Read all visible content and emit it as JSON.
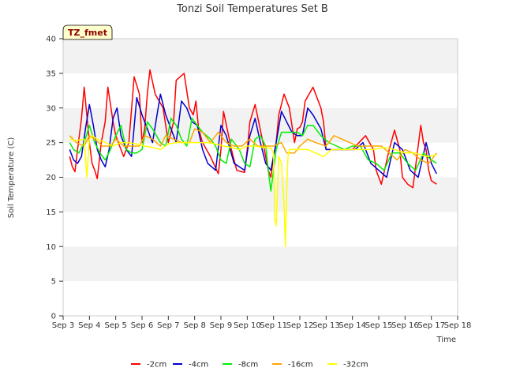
{
  "chart_data": {
    "type": "line",
    "title": "Tonzi Soil Temperatures Set B",
    "xlabel": "Time",
    "ylabel": "Soil Temperature (C)",
    "ylim": [
      0,
      40
    ],
    "xlim": [
      3,
      18
    ],
    "yticks": [
      0,
      5,
      10,
      15,
      20,
      25,
      30,
      35,
      40
    ],
    "xticks": [
      3,
      4,
      5,
      6,
      7,
      8,
      9,
      10,
      11,
      12,
      13,
      14,
      15,
      16,
      17,
      18
    ],
    "xtick_labels": [
      "Sep 3",
      "Sep 4",
      "Sep 5",
      "Sep 6",
      "Sep 7",
      "Sep 8",
      "Sep 9",
      "Sep 10",
      "Sep 11",
      "Sep 12",
      "Sep 13",
      "Sep 14",
      "Sep 15",
      "Sep 16",
      "Sep 17",
      "Sep 18"
    ],
    "grid": "horizontal bands",
    "legend_position": "bottom-center",
    "annotation": "TZ_fmet",
    "series": [
      {
        "name": "-2cm",
        "color": "#ff0000",
        "x": [
          3.25,
          3.35,
          3.45,
          3.55,
          3.7,
          3.8,
          3.9,
          4.0,
          4.1,
          4.2,
          4.3,
          4.45,
          4.6,
          4.7,
          4.9,
          5.0,
          5.1,
          5.2,
          5.3,
          5.5,
          5.7,
          5.9,
          6.0,
          6.1,
          6.2,
          6.3,
          6.5,
          6.8,
          7.0,
          7.2,
          7.3,
          7.6,
          7.8,
          7.95,
          8.05,
          8.15,
          8.3,
          8.6,
          8.9,
          9.0,
          9.1,
          9.4,
          9.6,
          9.8,
          9.9,
          10.0,
          10.1,
          10.3,
          10.6,
          10.8,
          10.9,
          11.0,
          11.1,
          11.2,
          11.4,
          11.6,
          11.8,
          11.9,
          12.0,
          12.1,
          12.2,
          12.5,
          12.8,
          12.9,
          13.0,
          13.1,
          13.5,
          14.0,
          14.5,
          14.8,
          14.9,
          15.0,
          15.1,
          15.4,
          15.6,
          15.8,
          15.9,
          16.0,
          16.1,
          16.3,
          16.6,
          16.7,
          16.8,
          16.9,
          17.0,
          17.2
        ],
        "values": [
          23,
          21.5,
          20.8,
          24,
          28.5,
          33,
          29,
          25,
          22,
          21,
          19.8,
          25,
          28,
          33,
          28,
          26,
          25,
          24,
          23,
          25,
          34.5,
          32,
          25,
          27,
          32,
          35.5,
          32,
          30,
          25,
          28,
          34,
          35,
          30,
          29,
          31,
          27,
          25,
          23,
          20.5,
          24,
          29.5,
          24,
          21,
          20.8,
          20.7,
          24,
          28,
          30.5,
          25,
          21,
          20,
          23,
          25,
          29,
          32,
          30,
          25,
          27,
          27.2,
          28,
          31,
          33,
          30,
          28,
          24,
          24,
          24,
          24,
          26,
          24,
          21,
          20,
          19,
          24,
          26.8,
          24,
          20,
          19.5,
          19,
          18.5,
          27.5,
          25,
          24,
          21,
          19.5,
          19
        ]
      },
      {
        "name": "-4cm",
        "color": "#0000cc",
        "x": [
          3.25,
          3.4,
          3.55,
          3.7,
          3.85,
          4.0,
          4.15,
          4.3,
          4.45,
          4.6,
          4.75,
          4.9,
          5.05,
          5.2,
          5.4,
          5.6,
          5.8,
          6.0,
          6.2,
          6.4,
          6.7,
          6.9,
          7.1,
          7.3,
          7.5,
          7.7,
          7.9,
          8.1,
          8.3,
          8.5,
          8.8,
          9.0,
          9.2,
          9.5,
          9.7,
          9.9,
          10.1,
          10.3,
          10.5,
          10.7,
          10.9,
          11.1,
          11.3,
          11.5,
          11.7,
          11.9,
          12.1,
          12.3,
          12.5,
          12.8,
          13.0,
          13.2,
          13.5,
          13.8,
          14.1,
          14.4,
          14.7,
          15.0,
          15.3,
          15.6,
          15.9,
          16.2,
          16.5,
          16.8,
          17.0,
          17.2
        ],
        "values": [
          24,
          22.5,
          22,
          23,
          27,
          30.5,
          27.5,
          24,
          22.5,
          21.5,
          24,
          28.5,
          30,
          26,
          24,
          23,
          31.5,
          29,
          27,
          25,
          32,
          29,
          27,
          25,
          31,
          30,
          28,
          27.5,
          24,
          22,
          21,
          27.5,
          26,
          22,
          21.5,
          21,
          26,
          28.5,
          25,
          22,
          21,
          25,
          29.5,
          28,
          26.5,
          26,
          26,
          30,
          29,
          27,
          24,
          24,
          24,
          24,
          24,
          25,
          22,
          21,
          20,
          25,
          24,
          21,
          20,
          25,
          22,
          20.5
        ]
      },
      {
        "name": "-8cm",
        "color": "#00ee00",
        "x": [
          3.25,
          3.4,
          3.6,
          3.8,
          4.0,
          4.2,
          4.4,
          4.6,
          4.8,
          5.0,
          5.2,
          5.4,
          5.6,
          5.8,
          6.0,
          6.2,
          6.4,
          6.7,
          6.9,
          7.1,
          7.3,
          7.5,
          7.7,
          7.9,
          8.1,
          8.3,
          8.6,
          8.8,
          9.0,
          9.2,
          9.4,
          9.7,
          9.9,
          10.1,
          10.3,
          10.5,
          10.7,
          10.8,
          10.9,
          11.0,
          11.1,
          11.3,
          11.6,
          11.9,
          12.1,
          12.3,
          12.5,
          12.8,
          13.1,
          13.4,
          13.7,
          14.0,
          14.3,
          14.6,
          14.9,
          15.2,
          15.5,
          15.8,
          16.1,
          16.4,
          16.7,
          17.0,
          17.2
        ],
        "values": [
          25,
          24,
          23.5,
          25,
          27.5,
          25,
          23.5,
          22.5,
          24,
          26,
          27.5,
          24,
          23.5,
          23.5,
          24,
          28,
          27,
          25,
          24.5,
          28.5,
          27.5,
          25.5,
          24.5,
          28.5,
          27.5,
          26.5,
          25.5,
          24.5,
          22.5,
          22,
          25.5,
          24,
          22,
          21.5,
          25.5,
          26,
          24.5,
          21,
          18,
          21,
          24,
          26.5,
          26.5,
          26.5,
          26,
          27.5,
          27.5,
          26,
          25,
          24.5,
          24,
          24.5,
          24.5,
          22.5,
          22,
          21,
          23.5,
          23.5,
          22,
          21,
          23.5,
          22.5,
          22
        ]
      },
      {
        "name": "-16cm",
        "color": "#ffa500",
        "x": [
          3.25,
          3.5,
          3.8,
          4.0,
          4.2,
          4.5,
          4.8,
          5.0,
          5.3,
          5.6,
          5.9,
          6.1,
          6.4,
          6.7,
          6.9,
          7.2,
          7.5,
          7.8,
          8.0,
          8.3,
          8.6,
          8.9,
          9.2,
          9.5,
          9.8,
          10.1,
          10.4,
          10.7,
          11.0,
          11.3,
          11.5,
          11.8,
          12.0,
          12.3,
          12.6,
          13.0,
          13.3,
          13.6,
          13.9,
          14.2,
          14.5,
          14.8,
          15.1,
          15.4,
          15.7,
          16.0,
          16.3,
          16.6,
          16.9,
          17.2
        ],
        "values": [
          26,
          25,
          24.5,
          26,
          25.5,
          24.5,
          24.5,
          25.5,
          24.5,
          24.5,
          24.5,
          26,
          25.5,
          24.5,
          26,
          25.5,
          25,
          25,
          27,
          26.5,
          25,
          26.5,
          25,
          24.5,
          24.5,
          25.5,
          24.5,
          24.5,
          24.5,
          25,
          23.5,
          23.5,
          24.5,
          25.5,
          25,
          24.5,
          26,
          25.5,
          25,
          24.5,
          24.5,
          24.5,
          24.5,
          23.5,
          22.5,
          24,
          23.5,
          22.5,
          22,
          23.5
        ]
      },
      {
        "name": "-32cm",
        "color": "#ffff00",
        "x": [
          3.25,
          3.5,
          3.8,
          3.9,
          4.0,
          4.1,
          4.3,
          4.6,
          4.9,
          5.2,
          5.5,
          5.8,
          6.1,
          6.4,
          6.7,
          7.0,
          7.3,
          7.6,
          7.9,
          8.2,
          8.5,
          8.8,
          9.1,
          9.4,
          9.7,
          10.0,
          10.3,
          10.6,
          10.9,
          11.0,
          11.05,
          11.1,
          11.2,
          11.3,
          11.4,
          11.45,
          11.5,
          11.55,
          11.6,
          11.8,
          12.0,
          12.3,
          12.6,
          12.9,
          13.2,
          13.6,
          14.0,
          14.4,
          14.8,
          15.2,
          15.6,
          16.0,
          16.4,
          16.8,
          17.2
        ],
        "values": [
          25.5,
          25.3,
          25.5,
          20,
          25.5,
          26,
          25.5,
          25,
          24.5,
          25,
          25,
          24.8,
          24.5,
          24.3,
          24,
          24.8,
          25,
          25,
          25,
          25,
          25,
          24.8,
          24.5,
          24.3,
          24,
          24.5,
          24.5,
          24.3,
          24.2,
          23.5,
          14,
          13,
          23,
          22,
          16,
          10,
          18,
          23,
          24,
          24,
          24,
          24,
          23.5,
          23,
          24,
          24,
          24,
          24,
          24,
          24.3,
          24,
          23.5,
          23.5,
          23,
          23.2
        ]
      }
    ]
  }
}
